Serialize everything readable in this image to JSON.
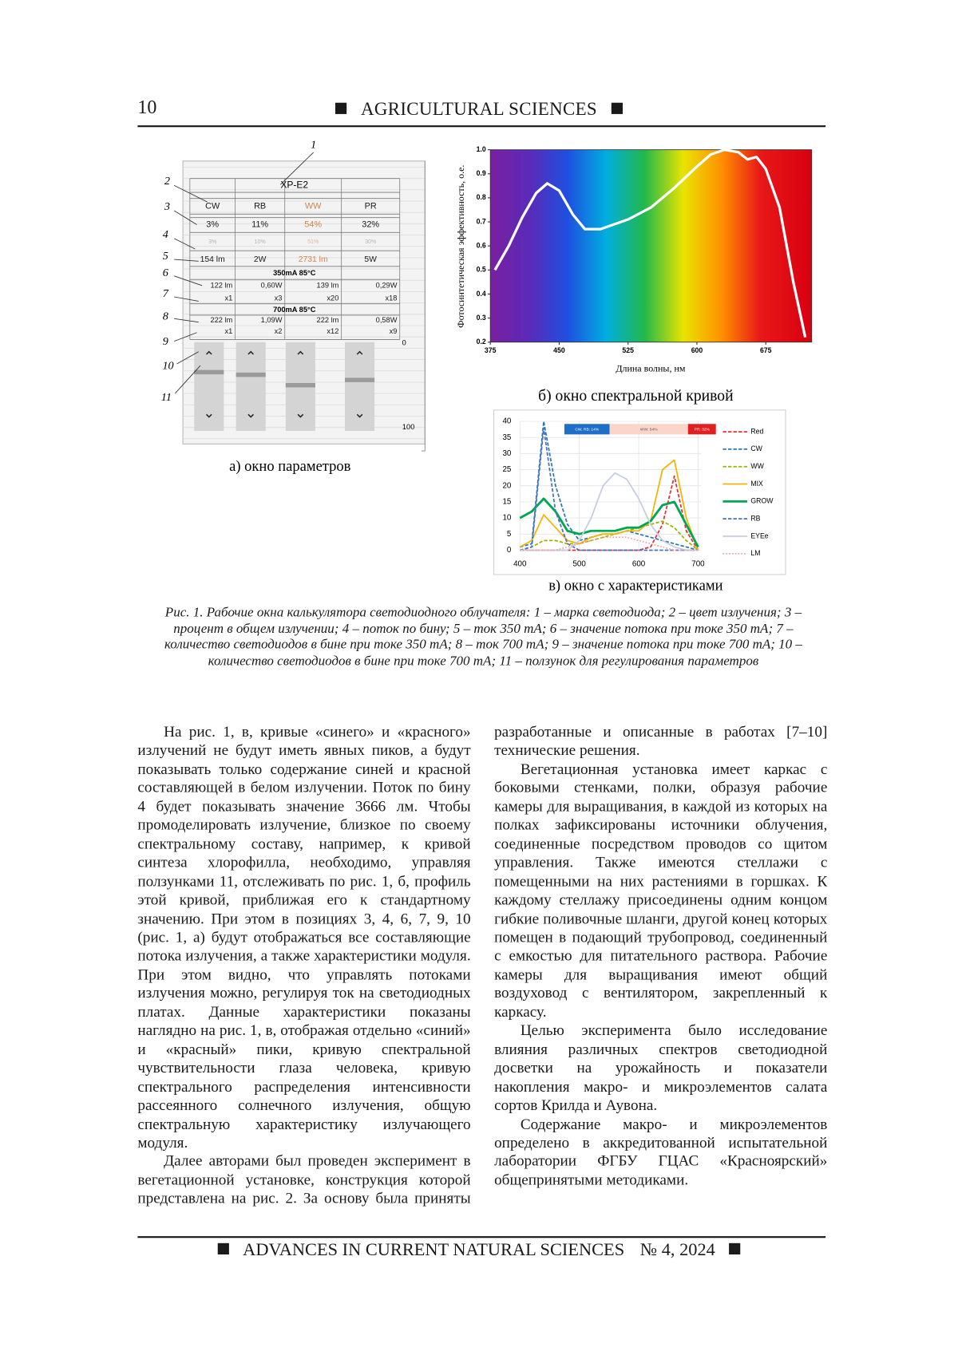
{
  "header": {
    "page_number": "10",
    "journal": "AGRICULTURAL SCIENCES"
  },
  "figure": {
    "callouts": [
      "1",
      "2",
      "3",
      "4",
      "5",
      "6",
      "7",
      "8",
      "9",
      "10",
      "11"
    ],
    "panel_a": {
      "model": "XP-E2",
      "colors": [
        "CW",
        "RB",
        "WW",
        "PR"
      ],
      "percent": [
        "3%",
        "11%",
        "54%",
        "32%"
      ],
      "flux_bin": [
        "3%",
        "10%",
        "51%",
        "30%"
      ],
      "ratings": [
        "154 lm",
        "2W",
        "2731 lm",
        "5W"
      ],
      "mode_350": "350mA 85°C",
      "flux_350": [
        "122 lm",
        "0,60W",
        "139 lm",
        "0,29W"
      ],
      "count_350": [
        "x1",
        "x3",
        "x20",
        "x18"
      ],
      "mode_700": "700mA 85°C",
      "flux_700": [
        "222 lm",
        "1,09W",
        "222 lm",
        "0,58W"
      ],
      "count_700": [
        "x1",
        "x2",
        "x12",
        "x9"
      ],
      "slider_min": "0",
      "slider_max": "100",
      "caption": "а) окно параметров"
    },
    "panel_b": {
      "type": "line",
      "y_label": "Фотосинтетическая эффективность, о.е.",
      "x_label": "Длина волны, нм",
      "caption": "б) окно спектральной кривой",
      "x": [
        380,
        395,
        410,
        425,
        437,
        450,
        465,
        478,
        495,
        525,
        550,
        575,
        600,
        615,
        630,
        645,
        655,
        665,
        675,
        690,
        705,
        718
      ],
      "values": [
        0.5,
        0.6,
        0.72,
        0.82,
        0.86,
        0.83,
        0.73,
        0.67,
        0.67,
        0.71,
        0.76,
        0.84,
        0.93,
        0.98,
        1.0,
        0.99,
        0.96,
        0.97,
        0.92,
        0.76,
        0.45,
        0.22
      ],
      "color": "#ffffff",
      "xlim": [
        375,
        725
      ],
      "ylim": [
        0.2,
        1.0
      ],
      "xticks": [
        375,
        450,
        525,
        600,
        675
      ],
      "yticks": [
        0.2,
        0.3,
        0.4,
        0.5,
        0.6,
        0.7,
        0.8,
        0.9,
        {
          "value": 1,
          "label": "1.0"
        }
      ]
    },
    "panel_c": {
      "type": "line",
      "caption": "в) окно с характеристиками",
      "banner": [
        "CW, RB: 14%",
        "WW: 54%",
        "PR: 32%"
      ],
      "x": [
        400,
        420,
        440,
        460,
        480,
        500,
        520,
        540,
        560,
        580,
        600,
        620,
        640,
        660,
        680,
        700
      ],
      "series": [
        {
          "name": "Red",
          "color": "#e03030",
          "style": "dashed",
          "values": [
            0,
            0,
            0,
            0,
            0,
            0,
            0,
            0,
            0,
            0,
            0,
            1,
            8,
            23,
            6,
            0
          ]
        },
        {
          "name": "CW",
          "color": "#2e75b6",
          "style": "dashed",
          "values": [
            1,
            2,
            40,
            20,
            8,
            3,
            4,
            5,
            5,
            6,
            5,
            4,
            3,
            2,
            1,
            0
          ]
        },
        {
          "name": "WW",
          "color": "#9cb400",
          "style": "dashed",
          "values": [
            0,
            1,
            3,
            3,
            2,
            2,
            3,
            4,
            5,
            6,
            7,
            8,
            9,
            7,
            3,
            0
          ]
        },
        {
          "name": "MIX",
          "color": "#f2b400",
          "style": "solid",
          "values": [
            1,
            3,
            11,
            7,
            3,
            2,
            4,
            5,
            5,
            6,
            6,
            9,
            25,
            28,
            10,
            0
          ]
        },
        {
          "name": "GROW",
          "color": "#00a651",
          "style": "solid",
          "values": [
            10,
            12,
            16,
            12,
            6,
            5,
            6,
            6,
            6,
            7,
            7,
            9,
            14,
            15,
            8,
            1
          ]
        },
        {
          "name": "RB",
          "color": "#4472c4",
          "style": "dashed",
          "values": [
            0,
            1,
            38,
            12,
            2,
            0,
            0,
            0,
            0,
            0,
            0,
            0,
            0,
            0,
            0,
            0
          ]
        },
        {
          "name": "EYEe",
          "color": "#c4cce0",
          "style": "solid",
          "values": [
            0,
            0,
            0,
            0,
            0,
            3,
            10,
            20,
            24,
            22,
            16,
            8,
            3,
            1,
            0,
            0
          ]
        },
        {
          "name": "LM",
          "color": "#f0a0a0",
          "style": "dotted",
          "values": [
            0,
            0,
            0,
            0,
            1,
            2,
            3,
            4,
            4,
            4,
            3,
            2,
            1,
            0,
            0,
            0
          ]
        }
      ],
      "xlim": [
        400,
        705
      ],
      "ylim": [
        0,
        40
      ],
      "xticks": [
        400,
        500,
        600,
        700
      ],
      "yticks": [
        0,
        5,
        10,
        15,
        20,
        25,
        30,
        35,
        40
      ],
      "grid": true
    },
    "caption": "Рис. 1. Рабочие окна калькулятора светодиодного облучателя: 1 – марка светодиода; 2 – цвет излучения; 3 – процент в общем излучении; 4 – поток по бину; 5 – ток 350 mA; 6 – значение потока при токе 350 mA; 7 – количество светодиодов в бине при токе 350 mA; 8 – ток 700 mA; 9 – значение потока при токе 700 mA; 10 – количество светодиодов в бине при токе 700 mA; 11 – ползунок для регулирования параметров"
  },
  "body": {
    "paragraphs": [
      "На рис. 1, в, кривые «синего» и «красного» излучений не будут иметь явных пиков, а будут показывать только содержание синей и красной составляющей в белом излучении. Поток по бину 4 будет показывать значение 3666 лм. Чтобы промоделировать излучение, близкое по своему спектральному составу, например, к кривой синтеза хлорофилла, необходимо, управляя ползунками 11, отслеживать по рис. 1, б, профиль этой кривой, приближая его к стандартному значению. При этом в позициях 3, 4, 6, 7, 9, 10 (рис. 1, а) будут отображаться все составляющие потока излучения, а также характеристики модуля. При этом видно, что управлять потоками излучения можно, регулируя ток на светодиодных платах. Данные характеристики показаны наглядно на рис. 1, в, отображая отдельно «синий» и «красный» пики, кривую спектральной чувствительности глаза человека, кривую спектрального распределения интенсивности рассеянного солнечного излучения, общую спектральную характеристику излучающего модуля.",
      "Далее авторами был проведен эксперимент в вегетационной установке, конструкция которой представлена на рис. 2. За основу была приняты разработанные и описанные в работах [7–10] технические решения.",
      "Вегетационная установка имеет каркас с боковыми стенками, полки, образуя рабочие камеры для выращивания, в каждой из которых на полках зафиксированы источники облучения, соединенные посредством проводов со щитом управления. Также имеются стеллажи с помещенными на них растениями в горшках. К каждому стеллажу присоединены одним концом гибкие поливочные шланги, другой конец которых помещен в подающий трубопровод, соединенный с емкостью для питательного раствора. Рабочие камеры для выращивания имеют общий воздуховод с вентилятором, закрепленный к каркасу.",
      "Целью эксперимента было исследование влияния различных спектров светодиодной досветки на урожайность и показатели накопления макро- и микроэлементов салата сортов Крилда и Аувона.",
      "Содержание макро- и микроэлементов определено в аккредитованной испытательной лаборатории ФГБУ ГЦАС «Красноярский» общепринятыми методиками."
    ]
  },
  "footer": {
    "journal": "ADVANCES IN CURRENT NATURAL SCIENCES",
    "issue": "№ 4, 2024"
  }
}
